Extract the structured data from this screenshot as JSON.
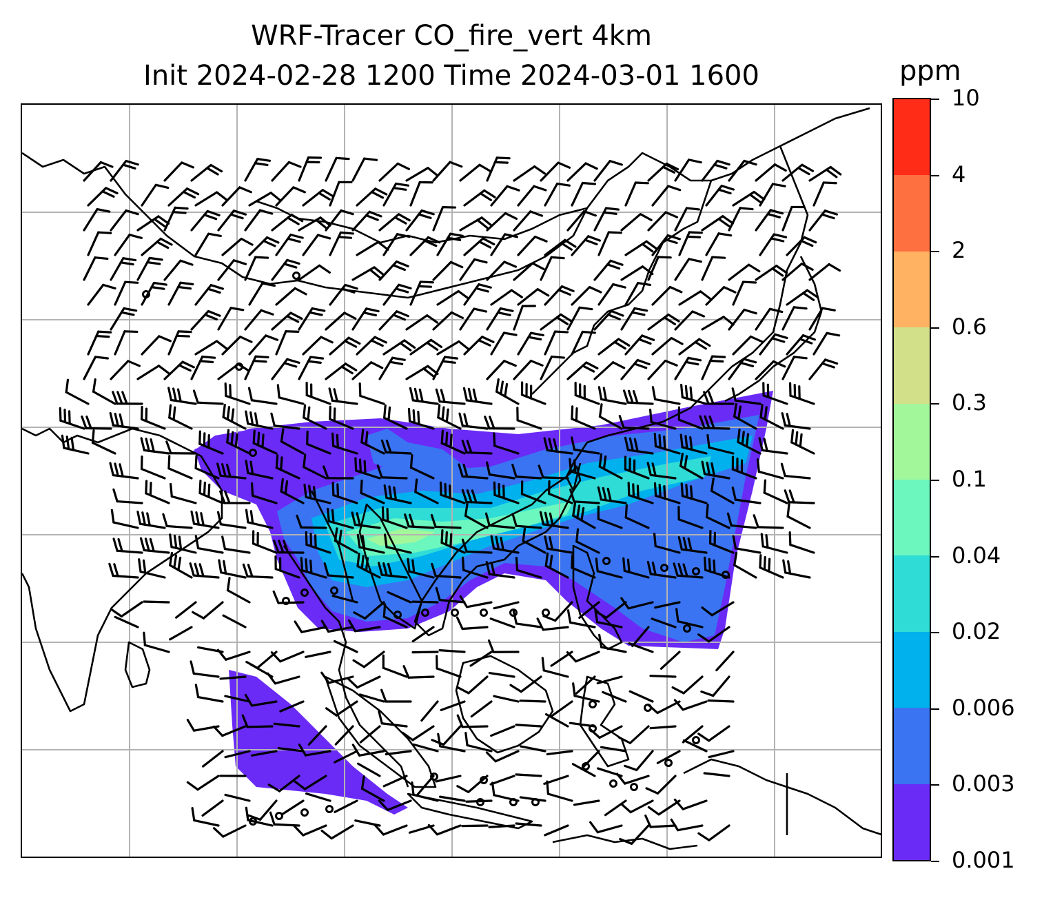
{
  "title": {
    "line1": "WRF-Tracer CO_fire_vert 4km",
    "line2": "Init 2024-02-28 1200 Time 2024-03-01 1600"
  },
  "colorbar": {
    "unit": "ppm",
    "levels": [
      "0.001",
      "0.003",
      "0.006",
      "0.02",
      "0.04",
      "0.1",
      "0.3",
      "0.6",
      "2",
      "4",
      "10"
    ],
    "colors": [
      "#6a2bf7",
      "#3a74f2",
      "#00b1ee",
      "#2fdcd6",
      "#6cf7bf",
      "#a2f79b",
      "#d2e08a",
      "#ffb262",
      "#ff7040",
      "#ff2c18"
    ]
  },
  "map": {
    "gridline_color": "#b3b3b3",
    "coastline_color": "#000000",
    "wind_barbs_color": "#000000"
  }
}
